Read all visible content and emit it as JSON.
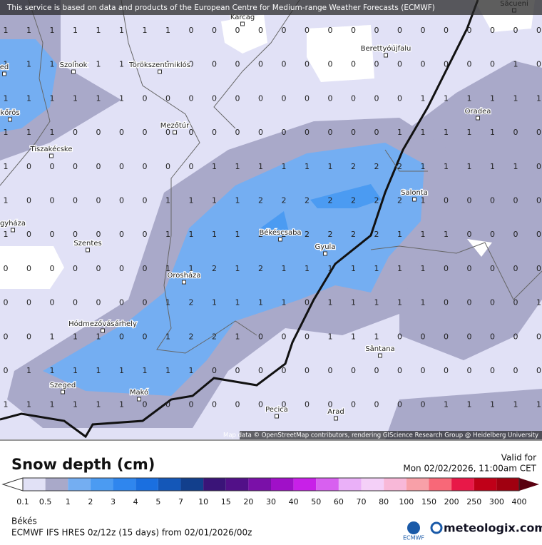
{
  "map": {
    "banner": "This service is based on data and products of the European Centre for Medium-range Weather Forecasts (ECMWF)",
    "attribution": "Map data © OpenStreetMap contributors, rendering GIScience Research Group @ Heidelberg University",
    "places": [
      "Karcag",
      "Săcueni",
      "Berettyóújfalu",
      "Szolnok",
      "Törökszentmiklós",
      "ed",
      "kőrös",
      "Mezőtúr",
      "Tiszakécske",
      "Oradea",
      "Salonta",
      "Békéscsaba",
      "Gyula",
      "Szentes",
      "gyháza",
      "Orosháza",
      "Hódmezővásárhely",
      "Sântana",
      "Szeged",
      "Makó",
      "Pecica",
      "Arad"
    ],
    "grid": [
      [
        1,
        1,
        1,
        1,
        1,
        1,
        1,
        1,
        0,
        0,
        0,
        0,
        0,
        0,
        0,
        0,
        0,
        0,
        0,
        0,
        0,
        0,
        0,
        0
      ],
      [
        1,
        1,
        1,
        1,
        1,
        1,
        1,
        1,
        0,
        0,
        0,
        0,
        0,
        0,
        0,
        0,
        0,
        0,
        0,
        0,
        0,
        0,
        1,
        0
      ],
      [
        1,
        1,
        1,
        1,
        1,
        1,
        0,
        0,
        0,
        0,
        0,
        0,
        0,
        0,
        0,
        0,
        0,
        0,
        1,
        1,
        1,
        1,
        1,
        1
      ],
      [
        1,
        1,
        1,
        0,
        0,
        0,
        0,
        0,
        0,
        0,
        0,
        0,
        0,
        0,
        0,
        0,
        0,
        1,
        1,
        1,
        1,
        1,
        0,
        0
      ],
      [
        1,
        0,
        0,
        0,
        0,
        0,
        0,
        0,
        0,
        1,
        1,
        1,
        1,
        1,
        1,
        2,
        2,
        2,
        1,
        1,
        1,
        1,
        1,
        0
      ],
      [
        1,
        0,
        0,
        0,
        0,
        0,
        0,
        1,
        1,
        1,
        1,
        2,
        2,
        2,
        2,
        2,
        2,
        2,
        1,
        0,
        0,
        0,
        0,
        0
      ],
      [
        1,
        0,
        0,
        0,
        0,
        0,
        0,
        1,
        1,
        1,
        1,
        2,
        2,
        2,
        2,
        2,
        2,
        1,
        1,
        1,
        0,
        0,
        0,
        0
      ],
      [
        0,
        0,
        0,
        0,
        0,
        0,
        0,
        1,
        1,
        2,
        1,
        2,
        1,
        1,
        1,
        1,
        1,
        1,
        1,
        0,
        0,
        0,
        0,
        0
      ],
      [
        0,
        0,
        0,
        0,
        0,
        0,
        0,
        1,
        2,
        1,
        1,
        1,
        1,
        0,
        1,
        1,
        1,
        1,
        1,
        0,
        0,
        0,
        0,
        1
      ],
      [
        0,
        0,
        1,
        1,
        1,
        0,
        0,
        1,
        2,
        2,
        1,
        0,
        0,
        0,
        1,
        1,
        1,
        0,
        0,
        0,
        0,
        0,
        0,
        0
      ],
      [
        0,
        1,
        1,
        1,
        1,
        1,
        1,
        1,
        1,
        0,
        0,
        0,
        0,
        0,
        0,
        0,
        0,
        0,
        0,
        0,
        0,
        0,
        0,
        0
      ],
      [
        1,
        1,
        1,
        1,
        1,
        1,
        0,
        0,
        0,
        0,
        0,
        0,
        0,
        0,
        0,
        0,
        0,
        0,
        0,
        1,
        1,
        1,
        1,
        1
      ]
    ]
  },
  "legend": {
    "title": "Snow depth (cm)",
    "valid_label": "Valid for",
    "valid_time": "Mon 02/02/2026, 11:00am CET",
    "ticks": [
      0.1,
      0.5,
      1,
      2,
      3,
      4,
      5,
      7,
      10,
      15,
      20,
      30,
      40,
      50,
      60,
      70,
      80,
      100,
      150,
      200,
      250,
      300,
      400
    ],
    "colors": [
      "#e1e1f6",
      "#a9a9c9",
      "#74aef2",
      "#4b9bf2",
      "#2f86ee",
      "#1a6fe0",
      "#1457b8",
      "#123f8c",
      "#3a1478",
      "#521088",
      "#7a10a8",
      "#a010c8",
      "#c820e8",
      "#d860f0",
      "#eab0f8",
      "#f4d0f8",
      "#f8b8d8",
      "#f8a0a8",
      "#f86878",
      "#e81848",
      "#c00018",
      "#a00010"
    ]
  },
  "footer": {
    "location": "Békés",
    "model": "ECMWF IFS HRES 0z/12z (15 days) from 02/01/2026/00z",
    "ecmwf": "ECMWF",
    "brand": "meteologix.com"
  }
}
